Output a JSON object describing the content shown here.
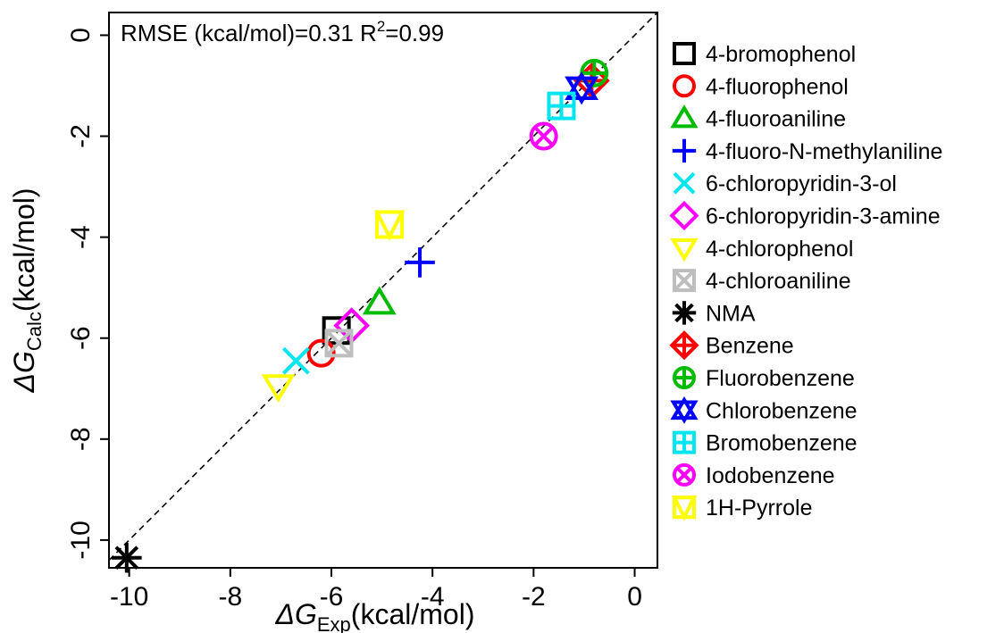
{
  "chart_data": {
    "type": "scatter",
    "xlabel": {
      "symbol": "ΔG",
      "sub": "Exp",
      "unit": "(kcal/mol)"
    },
    "ylabel": {
      "symbol": "ΔG",
      "sub": "Calc",
      "unit": "(kcal/mol)"
    },
    "xlim": [
      -10.4,
      0.45
    ],
    "ylim": [
      -10.55,
      0.45
    ],
    "xticks": [
      -10,
      -8,
      -6,
      -4,
      -2,
      0
    ],
    "yticks": [
      0,
      -2,
      -4,
      -6,
      -8,
      -10
    ],
    "xtick_labels": [
      "-10",
      "-8",
      "-6",
      "-4",
      "-2",
      "0"
    ],
    "ytick_labels": [
      "0",
      "-2",
      "-4",
      "-6",
      "-8",
      "-10"
    ],
    "annotation": {
      "prefix": "RMSE (kcal/mol)=0.31 R",
      "sup": "2",
      "suffix": "=0.99"
    },
    "reference_line": "y = x (dashed)",
    "grid": false,
    "legend_position": "right",
    "series": [
      {
        "name": "4-bromophenol",
        "marker": "square",
        "color": "#000000",
        "x": -5.9,
        "y": -5.85
      },
      {
        "name": "4-fluorophenol",
        "marker": "circle",
        "color": "#ff0000",
        "x": -6.2,
        "y": -6.3
      },
      {
        "name": "4-fluoroaniline",
        "marker": "triangle-up",
        "color": "#00bb00",
        "x": -5.05,
        "y": -5.3
      },
      {
        "name": "4-fluoro-N-methylaniline",
        "marker": "plus",
        "color": "#0000ff",
        "x": -4.25,
        "y": -4.5
      },
      {
        "name": "6-chloropyridin-3-ol",
        "marker": "cross",
        "color": "#00e5ee",
        "x": -6.7,
        "y": -6.45
      },
      {
        "name": "6-chloropyridin-3-amine",
        "marker": "diamond",
        "color": "#ff00ff",
        "x": -5.6,
        "y": -5.75
      },
      {
        "name": "4-chlorophenol",
        "marker": "triangle-down",
        "color": "#ffff00",
        "x": -7.05,
        "y": -6.95
      },
      {
        "name": "4-chloroaniline",
        "marker": "square-cross",
        "color": "#bebebe",
        "x": -5.85,
        "y": -6.1
      },
      {
        "name": "NMA",
        "marker": "asterisk",
        "color": "#000000",
        "x": -10.05,
        "y": -10.35
      },
      {
        "name": "Benzene",
        "marker": "diamond-plus",
        "color": "#ff0000",
        "x": -0.85,
        "y": -0.9
      },
      {
        "name": "Fluorobenzene",
        "marker": "circle-plus",
        "color": "#00bb00",
        "x": -0.8,
        "y": -0.75
      },
      {
        "name": "Chlorobenzene",
        "marker": "star-of-david",
        "color": "#0000ff",
        "x": -1.05,
        "y": -1.05
      },
      {
        "name": "Bromobenzene",
        "marker": "square-plus",
        "color": "#00e5ee",
        "x": -1.45,
        "y": -1.4
      },
      {
        "name": "Iodobenzene",
        "marker": "circle-cross",
        "color": "#ff00ff",
        "x": -1.8,
        "y": -2.0
      },
      {
        "name": "1H-Pyrrole",
        "marker": "square-triangle",
        "color": "#ffff00",
        "x": -4.85,
        "y": -3.75
      }
    ]
  }
}
